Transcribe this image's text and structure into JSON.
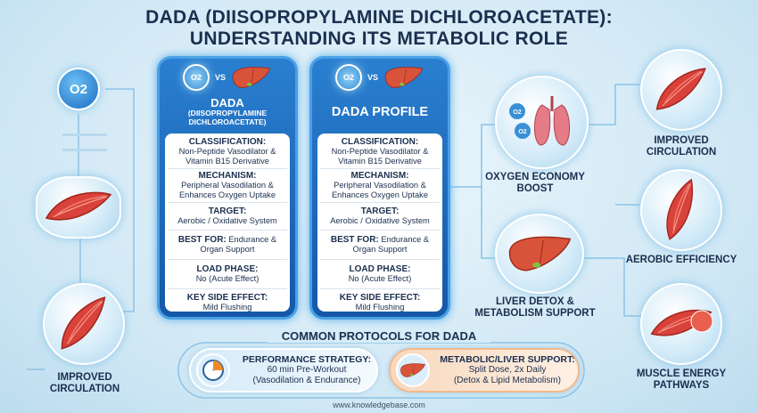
{
  "title": {
    "line1": "DADA (DIISOPROPYLAMINE DICHLOROACETATE):",
    "line2": "UNDERSTANDING ITS METABOLIC ROLE"
  },
  "left": {
    "o2_label": "O2",
    "bottom_label": "IMPROVED CIRCULATION"
  },
  "cards": [
    {
      "vs": "VS",
      "o2": "O2",
      "title": "DADA",
      "subtitle": "(DIISOPROPYLAMINE DICHLOROACETATE)",
      "sections": [
        {
          "heading": "CLASSIFICATION:",
          "text": "Non-Peptide Vasodilator & Vitamin B15 Derivative"
        },
        {
          "heading": "MECHANISM:",
          "text": "Peripheral Vasodilation & Enhances Oxygen Uptake"
        },
        {
          "heading": "TARGET:",
          "text": "Aerobic / Oxidative System"
        },
        {
          "heading": "BEST FOR:",
          "text": "Endurance & Organ Support"
        },
        {
          "heading": "LOAD PHASE:",
          "text": "No (Acute Effect)"
        },
        {
          "heading": "KEY SIDE EFFECT:",
          "text": "Mild Flushing"
        }
      ]
    },
    {
      "vs": "VS",
      "o2": "O2",
      "title": "DADA PROFILE",
      "subtitle": "",
      "sections": [
        {
          "heading": "CLASSIFICATION:",
          "text": "Non-Peptide Vasodilator & Vitamin B15 Derivative"
        },
        {
          "heading": "MECHANISM:",
          "text": "Peripheral Vasodilation & Enhances Oxygen Uptake"
        },
        {
          "heading": "TARGET:",
          "text": "Aerobic / Oxidative System"
        },
        {
          "heading": "BEST FOR:",
          "text": "Endurance & Organ Support"
        },
        {
          "heading": "LOAD PHASE:",
          "text": "No (Acute Effect)"
        },
        {
          "heading": "KEY SIDE EFFECT:",
          "text": "Mild Flushing"
        }
      ]
    }
  ],
  "middle": {
    "oxygen_label": "OXYGEN ECONOMY BOOST",
    "o2a": "O2",
    "o2b": "O2",
    "liver_label": "LIVER DETOX & METABOLISM SUPPORT"
  },
  "right": [
    {
      "label": "IMPROVED CIRCULATION"
    },
    {
      "label": "AEROBIC EFFICIENCY"
    },
    {
      "label": "MUSCLE ENERGY PATHWAYS"
    }
  ],
  "protocols": {
    "heading": "COMMON PROTOCOLS FOR DADA",
    "items": [
      {
        "title": "PERFORMANCE STRATEGY:",
        "line1": "60 min Pre-Workout",
        "line2": "(Vasodilation & Endurance)",
        "color": "#eaf4fb"
      },
      {
        "title": "METABOLIC/LIVER SUPPORT:",
        "line1": "Split Dose, 2x Daily",
        "line2": "(Detox & Lipid Metabolism)",
        "color": "#fbe3cf"
      }
    ]
  },
  "footer": {
    "url": "www.knowledgebase.com"
  }
}
